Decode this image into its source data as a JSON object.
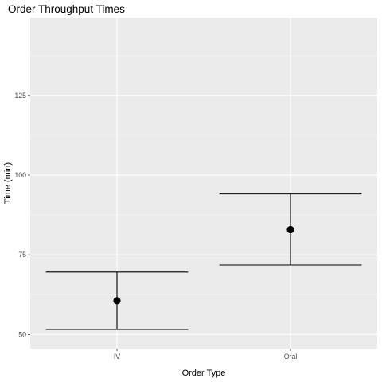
{
  "chart_data": {
    "type": "scatter",
    "title": "Order Throughput Times",
    "xlabel": "Order Type",
    "ylabel": "Time (min)",
    "categories": [
      "IV",
      "Oral"
    ],
    "points": [
      {
        "category": "IV",
        "mean": 60.6,
        "lower": 51.6,
        "upper": 69.6
      },
      {
        "category": "Oral",
        "mean": 82.9,
        "lower": 71.8,
        "upper": 94.1
      }
    ],
    "ylim": [
      45.6,
      149.4
    ],
    "yticks": [
      50,
      75,
      100,
      125
    ],
    "grid": true,
    "legend": "none",
    "colors": {
      "panel_background": "#ebebeb",
      "grid_major": "#ffffff",
      "grid_minor": "#f5f5f5",
      "mark": "#000000",
      "tick_text": "#4d4d4d"
    }
  }
}
